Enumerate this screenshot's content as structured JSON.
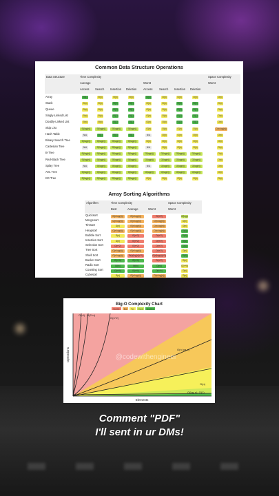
{
  "ops": {
    "title": "Common Data Structure Operations",
    "headers": {
      "structure": "Data Structure",
      "time": "Time Complexity",
      "space": "Space Complexity",
      "average": "Average",
      "worst": "Worst",
      "space_worst": "Worst",
      "ops": [
        "Access",
        "Search",
        "Insertion",
        "Deletion",
        "Access",
        "Search",
        "Insertion",
        "Deletion"
      ]
    },
    "rows": [
      {
        "name": "Array",
        "cells": [
          [
            "Θ(1)",
            "g"
          ],
          [
            "Θ(n)",
            "y"
          ],
          [
            "Θ(n)",
            "y"
          ],
          [
            "Θ(n)",
            "y"
          ],
          [
            "O(1)",
            "g"
          ],
          [
            "O(n)",
            "y"
          ],
          [
            "O(n)",
            "y"
          ],
          [
            "O(n)",
            "y"
          ],
          [
            "O(n)",
            "y"
          ]
        ]
      },
      {
        "name": "Stack",
        "cells": [
          [
            "Θ(n)",
            "y"
          ],
          [
            "Θ(n)",
            "y"
          ],
          [
            "Θ(1)",
            "g"
          ],
          [
            "Θ(1)",
            "g"
          ],
          [
            "O(n)",
            "y"
          ],
          [
            "O(n)",
            "y"
          ],
          [
            "O(1)",
            "g"
          ],
          [
            "O(1)",
            "g"
          ],
          [
            "O(n)",
            "y"
          ]
        ]
      },
      {
        "name": "Queue",
        "cells": [
          [
            "Θ(n)",
            "y"
          ],
          [
            "Θ(n)",
            "y"
          ],
          [
            "Θ(1)",
            "g"
          ],
          [
            "Θ(1)",
            "g"
          ],
          [
            "O(n)",
            "y"
          ],
          [
            "O(n)",
            "y"
          ],
          [
            "O(1)",
            "g"
          ],
          [
            "O(1)",
            "g"
          ],
          [
            "O(n)",
            "y"
          ]
        ]
      },
      {
        "name": "Singly-Linked List",
        "cells": [
          [
            "Θ(n)",
            "y"
          ],
          [
            "Θ(n)",
            "y"
          ],
          [
            "Θ(1)",
            "g"
          ],
          [
            "Θ(1)",
            "g"
          ],
          [
            "O(n)",
            "y"
          ],
          [
            "O(n)",
            "y"
          ],
          [
            "O(1)",
            "g"
          ],
          [
            "O(1)",
            "g"
          ],
          [
            "O(n)",
            "y"
          ]
        ]
      },
      {
        "name": "Doubly-Linked List",
        "cells": [
          [
            "Θ(n)",
            "y"
          ],
          [
            "Θ(n)",
            "y"
          ],
          [
            "Θ(1)",
            "g"
          ],
          [
            "Θ(1)",
            "g"
          ],
          [
            "O(n)",
            "y"
          ],
          [
            "O(n)",
            "y"
          ],
          [
            "O(1)",
            "g"
          ],
          [
            "O(1)",
            "g"
          ],
          [
            "O(n)",
            "y"
          ]
        ]
      },
      {
        "name": "Skip List",
        "cells": [
          [
            "Θ(log(n))",
            "lg"
          ],
          [
            "Θ(log(n))",
            "lg"
          ],
          [
            "Θ(log(n))",
            "lg"
          ],
          [
            "Θ(log(n))",
            "lg"
          ],
          [
            "O(n)",
            "y"
          ],
          [
            "O(n)",
            "y"
          ],
          [
            "O(n)",
            "y"
          ],
          [
            "O(n)",
            "y"
          ],
          [
            "O(n log(n))",
            "o"
          ]
        ]
      },
      {
        "name": "Hash Table",
        "cells": [
          [
            "N/A",
            "na"
          ],
          [
            "Θ(1)",
            "g"
          ],
          [
            "Θ(1)",
            "g"
          ],
          [
            "Θ(1)",
            "g"
          ],
          [
            "N/A",
            "na"
          ],
          [
            "O(n)",
            "y"
          ],
          [
            "O(n)",
            "y"
          ],
          [
            "O(n)",
            "y"
          ],
          [
            "O(n)",
            "y"
          ]
        ]
      },
      {
        "name": "Binary Search Tree",
        "cells": [
          [
            "Θ(log(n))",
            "lg"
          ],
          [
            "Θ(log(n))",
            "lg"
          ],
          [
            "Θ(log(n))",
            "lg"
          ],
          [
            "Θ(log(n))",
            "lg"
          ],
          [
            "O(n)",
            "y"
          ],
          [
            "O(n)",
            "y"
          ],
          [
            "O(n)",
            "y"
          ],
          [
            "O(n)",
            "y"
          ],
          [
            "O(n)",
            "y"
          ]
        ]
      },
      {
        "name": "Cartesian Tree",
        "cells": [
          [
            "N/A",
            "na"
          ],
          [
            "Θ(log(n))",
            "lg"
          ],
          [
            "Θ(log(n))",
            "lg"
          ],
          [
            "Θ(log(n))",
            "lg"
          ],
          [
            "N/A",
            "na"
          ],
          [
            "O(n)",
            "y"
          ],
          [
            "O(n)",
            "y"
          ],
          [
            "O(n)",
            "y"
          ],
          [
            "O(n)",
            "y"
          ]
        ]
      },
      {
        "name": "B-Tree",
        "cells": [
          [
            "Θ(log(n))",
            "lg"
          ],
          [
            "Θ(log(n))",
            "lg"
          ],
          [
            "Θ(log(n))",
            "lg"
          ],
          [
            "Θ(log(n))",
            "lg"
          ],
          [
            "O(log(n))",
            "lg"
          ],
          [
            "O(log(n))",
            "lg"
          ],
          [
            "O(log(n))",
            "lg"
          ],
          [
            "O(log(n))",
            "lg"
          ],
          [
            "O(n)",
            "y"
          ]
        ]
      },
      {
        "name": "Red-Black Tree",
        "cells": [
          [
            "Θ(log(n))",
            "lg"
          ],
          [
            "Θ(log(n))",
            "lg"
          ],
          [
            "Θ(log(n))",
            "lg"
          ],
          [
            "Θ(log(n))",
            "lg"
          ],
          [
            "O(log(n))",
            "lg"
          ],
          [
            "O(log(n))",
            "lg"
          ],
          [
            "O(log(n))",
            "lg"
          ],
          [
            "O(log(n))",
            "lg"
          ],
          [
            "O(n)",
            "y"
          ]
        ]
      },
      {
        "name": "Splay Tree",
        "cells": [
          [
            "N/A",
            "na"
          ],
          [
            "Θ(log(n))",
            "lg"
          ],
          [
            "Θ(log(n))",
            "lg"
          ],
          [
            "Θ(log(n))",
            "lg"
          ],
          [
            "N/A",
            "na"
          ],
          [
            "O(log(n))",
            "lg"
          ],
          [
            "O(log(n))",
            "lg"
          ],
          [
            "O(log(n))",
            "lg"
          ],
          [
            "O(n)",
            "y"
          ]
        ]
      },
      {
        "name": "AVL Tree",
        "cells": [
          [
            "Θ(log(n))",
            "lg"
          ],
          [
            "Θ(log(n))",
            "lg"
          ],
          [
            "Θ(log(n))",
            "lg"
          ],
          [
            "Θ(log(n))",
            "lg"
          ],
          [
            "O(log(n))",
            "lg"
          ],
          [
            "O(log(n))",
            "lg"
          ],
          [
            "O(log(n))",
            "lg"
          ],
          [
            "O(log(n))",
            "lg"
          ],
          [
            "O(n)",
            "y"
          ]
        ]
      },
      {
        "name": "KD Tree",
        "cells": [
          [
            "Θ(log(n))",
            "lg"
          ],
          [
            "Θ(log(n))",
            "lg"
          ],
          [
            "Θ(log(n))",
            "lg"
          ],
          [
            "Θ(log(n))",
            "lg"
          ],
          [
            "O(n)",
            "y"
          ],
          [
            "O(n)",
            "y"
          ],
          [
            "O(n)",
            "y"
          ],
          [
            "O(n)",
            "y"
          ],
          [
            "O(n)",
            "y"
          ]
        ]
      }
    ]
  },
  "sort": {
    "title": "Array Sorting Algorithms",
    "headers": {
      "algo": "Algorithm",
      "time": "Time Complexity",
      "space": "Space Complexity",
      "best": "Best",
      "average": "Average",
      "worst": "Worst",
      "space_worst": "Worst"
    },
    "rows": [
      {
        "name": "Quicksort",
        "cells": [
          [
            "Ω(n log(n))",
            "o"
          ],
          [
            "Θ(n log(n))",
            "o"
          ],
          [
            "O(n^2)",
            "r"
          ],
          [
            "O(log(n))",
            "lg"
          ]
        ]
      },
      {
        "name": "Mergesort",
        "cells": [
          [
            "Ω(n log(n))",
            "o"
          ],
          [
            "Θ(n log(n))",
            "o"
          ],
          [
            "O(n log(n))",
            "o"
          ],
          [
            "O(n)",
            "y"
          ]
        ]
      },
      {
        "name": "Timsort",
        "cells": [
          [
            "Ω(n)",
            "y"
          ],
          [
            "Θ(n log(n))",
            "o"
          ],
          [
            "O(n log(n))",
            "o"
          ],
          [
            "O(n)",
            "y"
          ]
        ]
      },
      {
        "name": "Heapsort",
        "cells": [
          [
            "Ω(n log(n))",
            "o"
          ],
          [
            "Θ(n log(n))",
            "o"
          ],
          [
            "O(n log(n))",
            "o"
          ],
          [
            "O(1)",
            "g"
          ]
        ]
      },
      {
        "name": "Bubble Sort",
        "cells": [
          [
            "Ω(n)",
            "y"
          ],
          [
            "Θ(n^2)",
            "r"
          ],
          [
            "O(n^2)",
            "r"
          ],
          [
            "O(1)",
            "g"
          ]
        ]
      },
      {
        "name": "Insertion Sort",
        "cells": [
          [
            "Ω(n)",
            "y"
          ],
          [
            "Θ(n^2)",
            "r"
          ],
          [
            "O(n^2)",
            "r"
          ],
          [
            "O(1)",
            "g"
          ]
        ]
      },
      {
        "name": "Selection Sort",
        "cells": [
          [
            "Ω(n^2)",
            "r"
          ],
          [
            "Θ(n^2)",
            "r"
          ],
          [
            "O(n^2)",
            "r"
          ],
          [
            "O(1)",
            "g"
          ]
        ]
      },
      {
        "name": "Tree Sort",
        "cells": [
          [
            "Ω(n log(n))",
            "o"
          ],
          [
            "Θ(n log(n))",
            "o"
          ],
          [
            "O(n^2)",
            "r"
          ],
          [
            "O(n)",
            "y"
          ]
        ]
      },
      {
        "name": "Shell Sort",
        "cells": [
          [
            "Ω(n log(n))",
            "o"
          ],
          [
            "Θ(n(log(n))^2)",
            "r"
          ],
          [
            "O(n(log(n))^2)",
            "r"
          ],
          [
            "O(1)",
            "g"
          ]
        ]
      },
      {
        "name": "Bucket Sort",
        "cells": [
          [
            "Ω(n+k)",
            "g"
          ],
          [
            "Θ(n+k)",
            "g"
          ],
          [
            "O(n^2)",
            "r"
          ],
          [
            "O(n)",
            "y"
          ]
        ]
      },
      {
        "name": "Radix Sort",
        "cells": [
          [
            "Ω(nk)",
            "g"
          ],
          [
            "Θ(nk)",
            "g"
          ],
          [
            "O(nk)",
            "g"
          ],
          [
            "O(n+k)",
            "y"
          ]
        ]
      },
      {
        "name": "Counting Sort",
        "cells": [
          [
            "Ω(n+k)",
            "g"
          ],
          [
            "Θ(n+k)",
            "g"
          ],
          [
            "O(n+k)",
            "g"
          ],
          [
            "O(k)",
            "y"
          ]
        ]
      },
      {
        "name": "Cubesort",
        "cells": [
          [
            "Ω(n)",
            "y"
          ],
          [
            "Θ(n log(n))",
            "o"
          ],
          [
            "O(n log(n))",
            "o"
          ],
          [
            "O(n)",
            "y"
          ]
        ]
      }
    ]
  },
  "chart": {
    "title": "Big-O Complexity Chart",
    "legend": [
      "Horrible",
      "Bad",
      "Fair",
      "Good",
      "Excellent"
    ],
    "ylabel": "Operations",
    "xlabel": "Elements",
    "watermark": "@codewithengineer",
    "curves": [
      "O(n!)",
      "O(2^n)",
      "O(n^2)",
      "O(n log n)",
      "O(n)",
      "O(log n), O(1)"
    ]
  },
  "caption": {
    "line1": "Comment \"PDF\"",
    "line2": "I'll sent in ur DMs!"
  },
  "colors": {
    "excellent": "#4cb84c",
    "good": "#c6e65a",
    "fair": "#f3e95a",
    "bad": "#f4b15c",
    "horrible": "#f07d6d"
  }
}
